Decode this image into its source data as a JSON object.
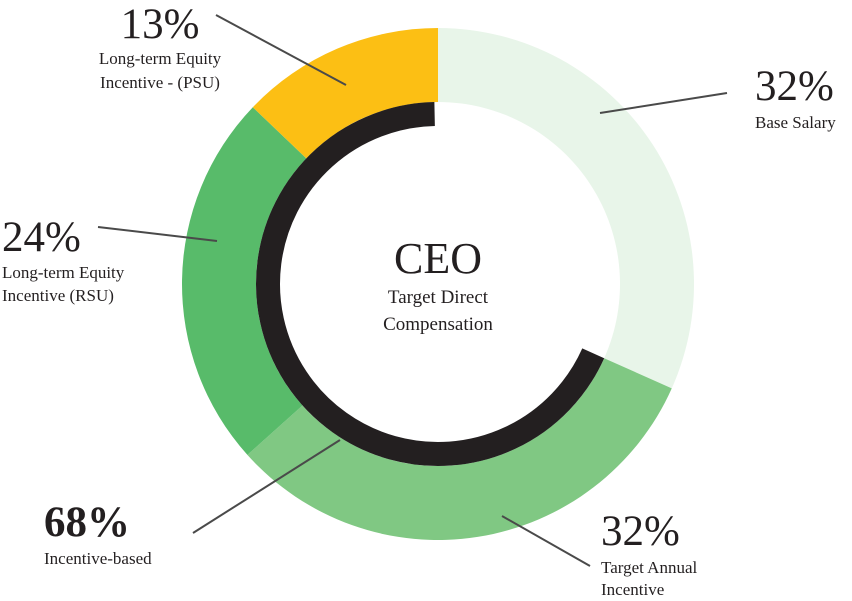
{
  "chart_data": {
    "type": "pie",
    "title": "CEO",
    "subtitle_lines": [
      "Target Direct",
      "Compensation"
    ],
    "slices": [
      {
        "name": "Base Salary",
        "value": 32,
        "value_label": "32%",
        "label_lines": [
          "Base Salary"
        ],
        "color": "#e8f5e9"
      },
      {
        "name": "Target Annual Incentive",
        "value": 32,
        "value_label": "32%",
        "label_lines": [
          "Target Annual",
          "Incentive"
        ],
        "color": "#80c883"
      },
      {
        "name": "Long-term Equity Incentive (RSU)",
        "value": 24,
        "value_label": "24%",
        "label_lines": [
          "Long-term Equity",
          "Incentive (RSU)"
        ],
        "color": "#58bb6a"
      },
      {
        "name": "Long-term Equity Incentive - (PSU)",
        "value": 13,
        "value_label": "13%",
        "label_lines": [
          "Long-term Equity",
          "Incentive - (PSU)"
        ],
        "color": "#fcbf14"
      }
    ],
    "inner_ring": {
      "name": "Incentive-based",
      "value": 68,
      "value_label": "68%",
      "label": "Incentive-based",
      "color": "#231f20"
    }
  }
}
